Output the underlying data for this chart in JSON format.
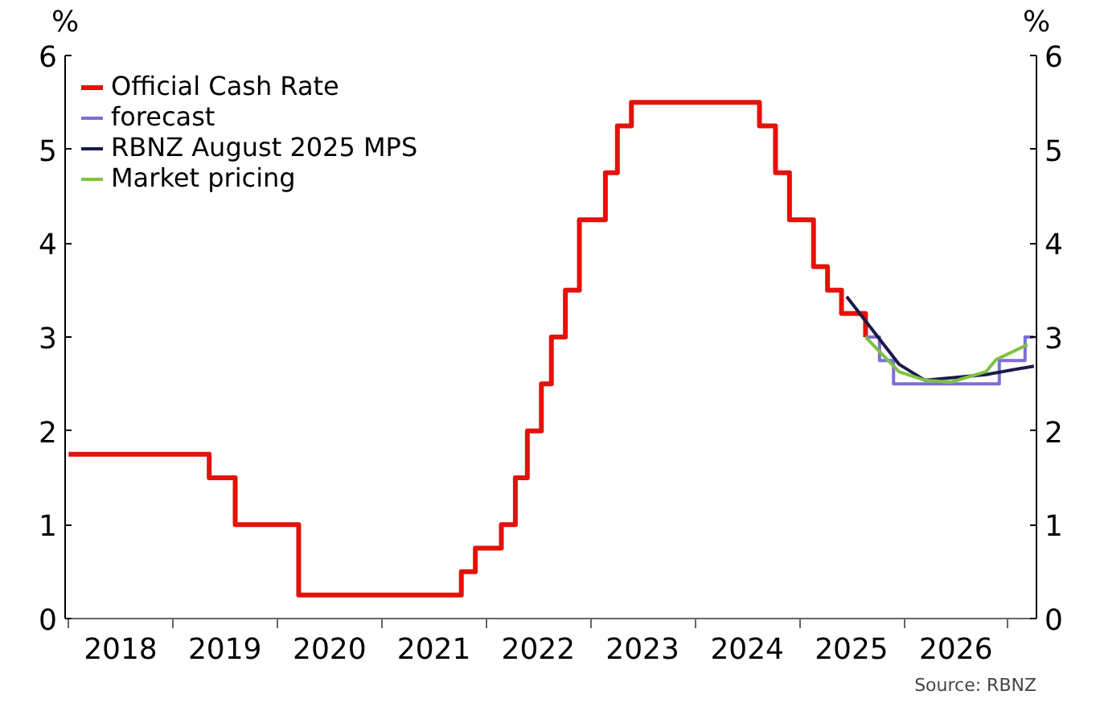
{
  "chart_data": {
    "type": "step",
    "ylabel": "%",
    "y2label": "%",
    "xlim": [
      "2017-12-20",
      "2027-04-10"
    ],
    "xticks": [
      {
        "value": "2018-07-02",
        "label": "2018"
      },
      {
        "value": "2019-07-02",
        "label": "2019"
      },
      {
        "value": "2020-07-02",
        "label": "2020"
      },
      {
        "value": "2021-07-02",
        "label": "2021"
      },
      {
        "value": "2022-07-02",
        "label": "2022"
      },
      {
        "value": "2023-07-02",
        "label": "2023"
      },
      {
        "value": "2024-07-02",
        "label": "2024"
      },
      {
        "value": "2025-07-02",
        "label": "2025"
      },
      {
        "value": "2026-07-02",
        "label": "2026"
      },
      {
        "value": "2018-01-01",
        "label": null
      },
      {
        "value": "2019-01-01",
        "label": null
      },
      {
        "value": "2020-01-01",
        "label": null
      },
      {
        "value": "2021-01-01",
        "label": null
      },
      {
        "value": "2022-01-01",
        "label": null
      },
      {
        "value": "2023-01-01",
        "label": null
      },
      {
        "value": "2024-01-01",
        "label": null
      },
      {
        "value": "2025-01-01",
        "label": null
      },
      {
        "value": "2026-01-01",
        "label": null
      },
      {
        "value": "2027-01-01",
        "label": null
      }
    ],
    "ylim": [
      0,
      6
    ],
    "yticks": [
      0,
      1,
      2,
      3,
      4,
      5,
      6
    ],
    "y2lim": [
      0,
      6
    ],
    "y2ticks": [
      0,
      1,
      2,
      3,
      4,
      5,
      6
    ],
    "grid": false,
    "legend": "top left",
    "series": [
      {
        "name": "Official Cash Rate",
        "color": "#e3120b",
        "x": [
          "2018-01-01",
          "2019-05-08",
          "2019-08-07",
          "2020-03-16",
          "2021-10-06",
          "2021-11-24",
          "2022-02-23",
          "2022-04-13",
          "2022-05-25",
          "2022-07-13",
          "2022-08-17",
          "2022-10-05",
          "2022-11-23",
          "2023-02-22",
          "2023-04-05",
          "2023-05-24",
          "2024-08-14",
          "2024-10-09",
          "2024-11-27",
          "2025-02-19",
          "2025-04-09",
          "2025-05-28",
          "2025-08-20"
        ],
        "values": [
          1.75,
          1.5,
          1.0,
          0.25,
          0.5,
          0.75,
          1.0,
          1.5,
          2.0,
          2.5,
          3.0,
          3.5,
          4.25,
          4.75,
          5.25,
          5.5,
          5.25,
          4.75,
          4.25,
          3.75,
          3.5,
          3.25,
          3.0
        ]
      },
      {
        "name": "forecast",
        "color": "#7b6fd6",
        "x": [
          "2025-08-20",
          "2025-10-08",
          "2025-11-26",
          "2026-12-01",
          "2027-03-01",
          "2027-04-01"
        ],
        "values": [
          3.0,
          2.75,
          2.5,
          2.75,
          3.0,
          3.0
        ]
      },
      {
        "name": "RBNZ August 2025 MPS",
        "color": "#1c1a4a",
        "type": "line",
        "x": [
          "2025-06-15",
          "2025-12-15",
          "2026-03-15",
          "2026-10-15",
          "2027-04-01"
        ],
        "values": [
          3.43,
          2.71,
          2.54,
          2.6,
          2.69
        ]
      },
      {
        "name": "Market pricing",
        "color": "#7dc242",
        "type": "line",
        "x": [
          "2025-08-20",
          "2025-12-15",
          "2026-03-15",
          "2026-06-15",
          "2026-10-15",
          "2026-11-20",
          "2027-03-10"
        ],
        "values": [
          3.0,
          2.63,
          2.54,
          2.52,
          2.63,
          2.76,
          2.92
        ]
      }
    ],
    "annotations": [
      "Source: RBNZ"
    ]
  }
}
